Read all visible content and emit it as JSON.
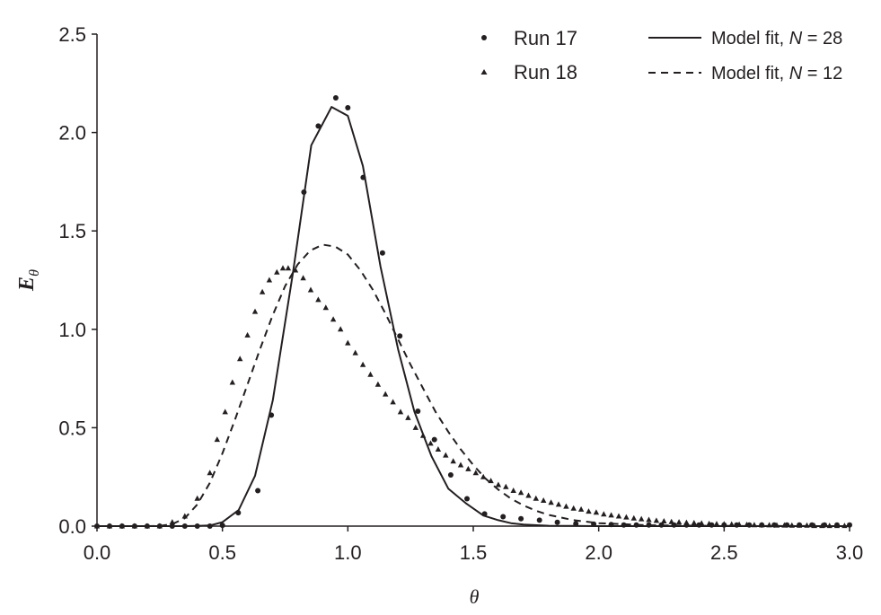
{
  "chart_data": {
    "type": "scatter",
    "title": "",
    "xlabel": "θ",
    "ylabel_main": "E",
    "ylabel_sub": "θ",
    "xlim": [
      0,
      3
    ],
    "ylim": [
      0,
      2.5
    ],
    "xticks": [
      "0.0",
      "0.5",
      "1.0",
      "1.5",
      "2.0",
      "2.5",
      "3.0"
    ],
    "yticks": [
      "0.0",
      "0.5",
      "1.0",
      "1.5",
      "2.0",
      "2.5"
    ],
    "grid": false,
    "legend_position": "top-right",
    "legend": {
      "run17": "Run 17",
      "run18": "Run 18",
      "fit28_prefix": "Model fit, ",
      "fit28_n": "N",
      "fit28_suffix": " = 28",
      "fit12_prefix": "Model fit, ",
      "fit12_n": "N",
      "fit12_suffix": " = 12"
    },
    "series": [
      {
        "name": "Run 17",
        "style": "dots",
        "x": [
          0.0,
          0.05,
          0.1,
          0.15,
          0.2,
          0.25,
          0.3,
          0.35,
          0.4,
          0.45,
          0.5,
          0.563,
          0.641,
          0.695,
          0.825,
          0.882,
          0.952,
          1.0,
          1.061,
          1.138,
          1.207,
          1.279,
          1.345,
          1.41,
          1.475,
          1.545,
          1.619,
          1.69,
          1.764,
          1.835,
          1.909,
          1.98,
          2.05,
          2.1,
          2.15,
          2.2,
          2.25,
          2.3,
          2.35,
          2.4,
          2.45,
          2.5,
          2.55,
          2.6,
          2.65,
          2.7,
          2.75,
          2.8,
          2.85,
          2.9,
          2.95,
          3.0
        ],
        "y": [
          0,
          0,
          0,
          0,
          0,
          0,
          0,
          0,
          0,
          0,
          0.004,
          0.068,
          0.18,
          0.564,
          1.697,
          2.033,
          2.176,
          2.126,
          1.772,
          1.388,
          0.966,
          0.584,
          0.44,
          0.26,
          0.139,
          0.062,
          0.048,
          0.038,
          0.03,
          0.019,
          0.012,
          0.01,
          0.008,
          0.006,
          0.006,
          0.006,
          0.006,
          0.006,
          0.006,
          0.006,
          0.006,
          0.006,
          0.006,
          0.006,
          0.006,
          0.006,
          0.006,
          0.006,
          0.006,
          0.006,
          0.006,
          0.006
        ]
      },
      {
        "name": "Run 18",
        "style": "triangles",
        "x": [
          0.0,
          0.05,
          0.1,
          0.15,
          0.2,
          0.25,
          0.3,
          0.35,
          0.4,
          0.45,
          0.479,
          0.511,
          0.54,
          0.57,
          0.6,
          0.63,
          0.659,
          0.687,
          0.717,
          0.741,
          0.762,
          0.791,
          0.822,
          0.852,
          0.882,
          0.912,
          0.942,
          0.971,
          1.0,
          1.03,
          1.06,
          1.09,
          1.12,
          1.15,
          1.18,
          1.21,
          1.24,
          1.27,
          1.3,
          1.33,
          1.36,
          1.39,
          1.42,
          1.45,
          1.48,
          1.51,
          1.54,
          1.57,
          1.6,
          1.63,
          1.66,
          1.69,
          1.72,
          1.75,
          1.78,
          1.81,
          1.84,
          1.87,
          1.9,
          1.93,
          1.96,
          1.99,
          2.02,
          2.05,
          2.08,
          2.11,
          2.14,
          2.17,
          2.2,
          2.23,
          2.26,
          2.29,
          2.32,
          2.35,
          2.38,
          2.41,
          2.44,
          2.47,
          2.5,
          2.53,
          2.56,
          2.59,
          2.62,
          2.65,
          2.68,
          2.71,
          2.74,
          2.77,
          2.8,
          2.83,
          2.86,
          2.89,
          2.92,
          2.95,
          2.98
        ],
        "y": [
          0,
          0,
          0,
          0,
          0,
          0,
          0.02,
          0.05,
          0.14,
          0.27,
          0.44,
          0.58,
          0.73,
          0.85,
          0.97,
          1.09,
          1.19,
          1.25,
          1.29,
          1.31,
          1.31,
          1.3,
          1.26,
          1.2,
          1.15,
          1.11,
          1.05,
          1.0,
          0.93,
          0.88,
          0.82,
          0.77,
          0.72,
          0.67,
          0.63,
          0.58,
          0.55,
          0.5,
          0.46,
          0.42,
          0.39,
          0.36,
          0.33,
          0.31,
          0.29,
          0.27,
          0.25,
          0.23,
          0.21,
          0.2,
          0.18,
          0.17,
          0.155,
          0.14,
          0.13,
          0.12,
          0.11,
          0.1,
          0.09,
          0.085,
          0.075,
          0.07,
          0.06,
          0.055,
          0.05,
          0.045,
          0.04,
          0.036,
          0.032,
          0.028,
          0.025,
          0.022,
          0.02,
          0.018,
          0.016,
          0.014,
          0.012,
          0.011,
          0.01,
          0.009,
          0.008,
          0.007,
          0.006,
          0.005,
          0.005,
          0.004,
          0.004,
          0.003,
          0.003,
          0.003,
          0.002,
          0.002,
          0.002,
          0.002,
          0.002
        ]
      },
      {
        "name": "Model fit, N = 28",
        "style": "solid",
        "x": [
          0.0,
          0.1,
          0.2,
          0.3,
          0.35,
          0.4,
          0.45,
          0.5,
          0.565,
          0.63,
          0.701,
          0.781,
          0.854,
          0.935,
          1.0,
          1.06,
          1.13,
          1.2,
          1.265,
          1.333,
          1.401,
          1.47,
          1.54,
          1.6,
          1.65,
          1.7,
          1.8,
          1.9,
          2.0,
          2.5,
          3.0
        ],
        "y": [
          0,
          0,
          0,
          0,
          0,
          0.001,
          0.003,
          0.02,
          0.082,
          0.256,
          0.64,
          1.287,
          1.935,
          2.13,
          2.085,
          1.83,
          1.321,
          0.9,
          0.582,
          0.356,
          0.19,
          0.117,
          0.054,
          0.03,
          0.015,
          0.008,
          0.002,
          0.001,
          0,
          0,
          0
        ]
      },
      {
        "name": "Model fit, N = 12",
        "style": "dashed",
        "x": [
          0.0,
          0.1,
          0.2,
          0.25,
          0.3,
          0.35,
          0.4,
          0.45,
          0.5,
          0.55,
          0.6,
          0.65,
          0.7,
          0.75,
          0.8,
          0.85,
          0.9,
          0.95,
          1.0,
          1.05,
          1.1,
          1.15,
          1.2,
          1.25,
          1.3,
          1.35,
          1.4,
          1.45,
          1.5,
          1.55,
          1.6,
          1.65,
          1.7,
          1.75,
          1.8,
          1.9,
          2.0,
          2.2,
          2.5,
          3.0
        ],
        "y": [
          0,
          0,
          0,
          0.001,
          0.01,
          0.04,
          0.11,
          0.22,
          0.37,
          0.54,
          0.72,
          0.9,
          1.07,
          1.22,
          1.33,
          1.4,
          1.43,
          1.42,
          1.38,
          1.3,
          1.2,
          1.08,
          0.95,
          0.82,
          0.7,
          0.58,
          0.48,
          0.39,
          0.31,
          0.24,
          0.185,
          0.14,
          0.105,
          0.078,
          0.057,
          0.03,
          0.015,
          0.004,
          0.001,
          0
        ]
      }
    ]
  }
}
